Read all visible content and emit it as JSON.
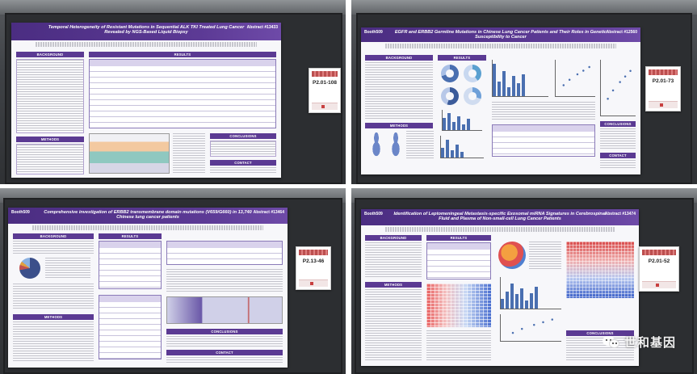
{
  "watermark": {
    "icon": "wechat-icon",
    "text": "世和基因"
  },
  "posters": [
    {
      "booth": "",
      "abstract": "Abstract #13433",
      "title": "Temporal Heterogeneity of Resistant Mutations in Sequential ALK TKI Treated Lung Cancer Revealed by NGS-Based Liquid Biopsy",
      "sections": [
        "BACKGROUND",
        "RESULTS",
        "METHODS",
        "CONCLUSIONS",
        "CONTACT"
      ],
      "tag_code": "P2.01-108"
    },
    {
      "booth": "Booth509",
      "abstract": "Abstract #12560",
      "title": "EGFR and ERBB2 Germline Mutations in Chinese Lung Cancer Patients and Their Roles in Genetic Susceptibility to Cancer",
      "sections": [
        "BACKGROUND",
        "RESULTS",
        "METHODS",
        "CONCLUSIONS",
        "CONTACT"
      ],
      "tag_code": "P2.01-73"
    },
    {
      "booth": "Booth509",
      "abstract": "Abstract #13464",
      "title": "Comprehensive investigation of ERBB2 transmembrane domain mutations (V659/G660) in 13,740 Chinese lung cancer patients",
      "sections": [
        "BACKGROUND",
        "RESULTS",
        "METHODS",
        "CONCLUSIONS",
        "CONTACT"
      ],
      "tag_code": "P2.13-46"
    },
    {
      "booth": "Booth509",
      "abstract": "Abstract #13474",
      "title": "Identification of Leptomeningeal Metastasis-specific Exosomal miRNA Signatures in Cerebrospinal Fluid and Plasma of Non-small-cell Lung Cancer Patients",
      "sections": [
        "BACKGROUND",
        "RESULTS",
        "METHODS",
        "CONCLUSIONS"
      ],
      "tag_code": "P2.01-52"
    }
  ]
}
